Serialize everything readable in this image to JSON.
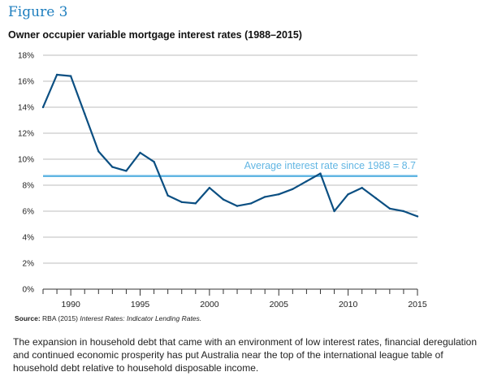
{
  "figure_label": "Figure 3",
  "source": {
    "label": "Source:",
    "text": "RBA (2015)",
    "italic": "Interest Rates: Indicator Lending Rates."
  },
  "caption": "The expansion in household debt that came with an environment of low interest rates, financial deregulation and continued economic prosperity has put Australia near the top of the international league table of household debt relative to household disposable income.",
  "colors": {
    "line": "#0b4f82",
    "average": "#62b6e3",
    "grid": "#bdbdbd",
    "figure_label": "#1f7fbf"
  },
  "chart_data": {
    "type": "line",
    "title": "Owner occupier variable mortgage interest rates (1988–2015)",
    "xlabel": "",
    "ylabel": "",
    "xlim": [
      1988,
      2015
    ],
    "ylim": [
      0,
      18
    ],
    "y_ticks": [
      0,
      2,
      4,
      6,
      8,
      10,
      12,
      14,
      16,
      18
    ],
    "y_tick_labels": [
      "0%",
      "2%",
      "4%",
      "6%",
      "8%",
      "10%",
      "12%",
      "14%",
      "16%",
      "18%"
    ],
    "x_tick_labels": [
      1990,
      1995,
      2000,
      2005,
      2010,
      2015
    ],
    "grid": "horizontal",
    "series": [
      {
        "x": [
          1988,
          1989,
          1990,
          1991,
          1992,
          1993,
          1994,
          1995,
          1996,
          1997,
          1998,
          1999,
          2000,
          2001,
          2002,
          2003,
          2004,
          2005,
          2006,
          2007,
          2008,
          2009,
          2010,
          2011,
          2012,
          2013,
          2014,
          2015
        ],
        "values": [
          14.0,
          16.5,
          16.4,
          13.5,
          10.6,
          9.4,
          9.1,
          10.5,
          9.8,
          7.2,
          6.7,
          6.6,
          7.8,
          6.9,
          6.4,
          6.6,
          7.1,
          7.3,
          7.7,
          8.3,
          8.9,
          6.0,
          7.3,
          7.8,
          7.0,
          6.2,
          6.0,
          5.6
        ]
      }
    ],
    "reference_line": {
      "value": 8.7,
      "label": "Average interest rate since 1988 = 8.7"
    }
  }
}
